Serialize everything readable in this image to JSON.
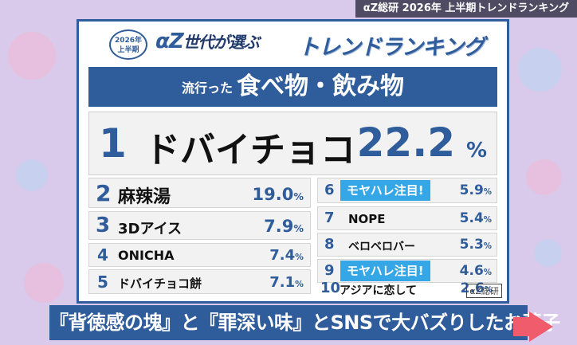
{
  "top_label": "αZ総研 2026年 上半期トレンドランキング",
  "header": {
    "badge_line1": "2026年",
    "badge_line2": "上半期",
    "brand_az": "αZ",
    "brand_text": "世代が選ぶ",
    "brand_ranking": "トレンドランキング"
  },
  "category": {
    "prefix": "流行った",
    "title": "食べ物・飲み物"
  },
  "first": {
    "rank": "1",
    "name": "ドバイチョコ",
    "percent": "22.2",
    "unit": "%"
  },
  "left_items": [
    {
      "rank": "2",
      "name": "麻辣湯",
      "percent": "19.0",
      "unit": "%"
    },
    {
      "rank": "3",
      "name": "3Dアイス",
      "percent": "7.9",
      "unit": "%"
    },
    {
      "rank": "4",
      "name": "ONICHA",
      "percent": "7.4",
      "unit": "%"
    },
    {
      "rank": "5",
      "name": "ドバイチョコ餅",
      "percent": "7.1",
      "unit": "%"
    }
  ],
  "right_items": [
    {
      "rank": "6",
      "name": "モヤハレ注目!",
      "percent": "5.9",
      "unit": "%"
    },
    {
      "rank": "7",
      "name": "NOPE",
      "percent": "5.4",
      "unit": "%"
    },
    {
      "rank": "8",
      "name": "ベロベロバー",
      "percent": "5.3",
      "unit": "%"
    },
    {
      "rank": "9",
      "name": "モヤハレ注目!",
      "percent": "4.6",
      "unit": "%"
    },
    {
      "rank": "10",
      "name": "アジアに恋して",
      "percent": "2.6",
      "unit": "%"
    }
  ],
  "logo": "αZ総研",
  "caption": "『背徳感の塊』と『罪深い味』とSNSで大バズりしたお菓子",
  "colors": {
    "accent": "#2f5c9a",
    "tag": "#35a6e6",
    "arrow": "#f05c6b",
    "background": "#d9c9ea"
  }
}
